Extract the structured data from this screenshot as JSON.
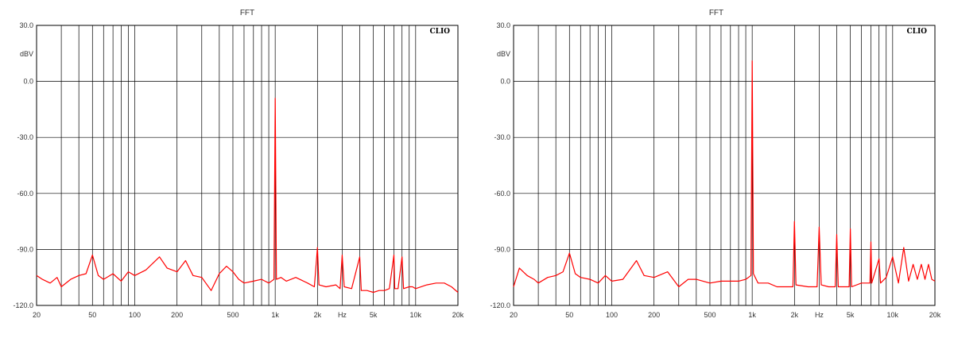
{
  "colors": {
    "trace": "#ff0000",
    "grid": "#000000",
    "background": "#ffffff"
  },
  "chart_data": [
    {
      "type": "line",
      "title": "FFT",
      "brand_label": "CLIO",
      "ylabel": "dBV",
      "x_scale": "log",
      "xlim": [
        20,
        20000
      ],
      "ylim": [
        -120,
        30
      ],
      "grid": true,
      "y_ticks": [
        {
          "value": 30,
          "label": "30.0"
        },
        {
          "value": 0,
          "label": "0.0"
        },
        {
          "value": -30,
          "label": "-30.0"
        },
        {
          "value": -60,
          "label": "-60.0"
        },
        {
          "value": -90,
          "label": "-90.0"
        },
        {
          "value": -120,
          "label": "-120.0"
        }
      ],
      "x_ticks": [
        {
          "value": 20,
          "label": "20"
        },
        {
          "value": 50,
          "label": "50"
        },
        {
          "value": 100,
          "label": "100"
        },
        {
          "value": 200,
          "label": "200"
        },
        {
          "value": 500,
          "label": "500"
        },
        {
          "value": 1000,
          "label": "1k"
        },
        {
          "value": 2000,
          "label": "2k"
        },
        {
          "value": 3000,
          "label": "Hz"
        },
        {
          "value": 5000,
          "label": "5k"
        },
        {
          "value": 10000,
          "label": "10k"
        },
        {
          "value": 20000,
          "label": "20k"
        }
      ],
      "x_gridlines": [
        20,
        30,
        40,
        50,
        60,
        70,
        80,
        90,
        100,
        200,
        300,
        400,
        500,
        600,
        700,
        800,
        900,
        1000,
        2000,
        3000,
        4000,
        5000,
        6000,
        7000,
        8000,
        9000,
        10000,
        20000
      ],
      "series": [
        {
          "values": [
            [
              20,
              -104
            ],
            [
              22,
              -106
            ],
            [
              25,
              -108
            ],
            [
              28,
              -105
            ],
            [
              30,
              -110
            ],
            [
              35,
              -106
            ],
            [
              40,
              -104
            ],
            [
              45,
              -103
            ],
            [
              50,
              -93
            ],
            [
              55,
              -104
            ],
            [
              60,
              -106
            ],
            [
              70,
              -103
            ],
            [
              80,
              -107
            ],
            [
              90,
              -102
            ],
            [
              100,
              -104
            ],
            [
              120,
              -101
            ],
            [
              150,
              -94
            ],
            [
              170,
              -100
            ],
            [
              200,
              -102
            ],
            [
              230,
              -96
            ],
            [
              260,
              -104
            ],
            [
              300,
              -105
            ],
            [
              350,
              -112
            ],
            [
              400,
              -103
            ],
            [
              450,
              -99
            ],
            [
              500,
              -102
            ],
            [
              550,
              -106
            ],
            [
              600,
              -108
            ],
            [
              700,
              -107
            ],
            [
              800,
              -106
            ],
            [
              900,
              -108
            ],
            [
              980,
              -106
            ],
            [
              1000,
              -9
            ],
            [
              1020,
              -106
            ],
            [
              1100,
              -105
            ],
            [
              1200,
              -107
            ],
            [
              1400,
              -105
            ],
            [
              1700,
              -108
            ],
            [
              1900,
              -110
            ],
            [
              2000,
              -89
            ],
            [
              2050,
              -109
            ],
            [
              2300,
              -110
            ],
            [
              2700,
              -109
            ],
            [
              2900,
              -111
            ],
            [
              3000,
              -93
            ],
            [
              3100,
              -110
            ],
            [
              3500,
              -111
            ],
            [
              4000,
              -94
            ],
            [
              4100,
              -112
            ],
            [
              4500,
              -112
            ],
            [
              5000,
              -113
            ],
            [
              5500,
              -112
            ],
            [
              6000,
              -112
            ],
            [
              6500,
              -111
            ],
            [
              7000,
              -93
            ],
            [
              7100,
              -111
            ],
            [
              7500,
              -111
            ],
            [
              8000,
              -94
            ],
            [
              8200,
              -111
            ],
            [
              9000,
              -110
            ],
            [
              9500,
              -110
            ],
            [
              10000,
              -111
            ],
            [
              12000,
              -109
            ],
            [
              14000,
              -108
            ],
            [
              16000,
              -108
            ],
            [
              18000,
              -110
            ],
            [
              20000,
              -113
            ]
          ]
        }
      ]
    },
    {
      "type": "line",
      "title": "FFT",
      "brand_label": "CLIO",
      "ylabel": "dBV",
      "x_scale": "log",
      "xlim": [
        20,
        20000
      ],
      "ylim": [
        -120,
        30
      ],
      "grid": true,
      "y_ticks": [
        {
          "value": 30,
          "label": "30.0"
        },
        {
          "value": 0,
          "label": "0.0"
        },
        {
          "value": -30,
          "label": "-30.0"
        },
        {
          "value": -60,
          "label": "-60.0"
        },
        {
          "value": -90,
          "label": "-90.0"
        },
        {
          "value": -120,
          "label": "-120.0"
        }
      ],
      "x_ticks": [
        {
          "value": 20,
          "label": "20"
        },
        {
          "value": 50,
          "label": "50"
        },
        {
          "value": 100,
          "label": "100"
        },
        {
          "value": 200,
          "label": "200"
        },
        {
          "value": 500,
          "label": "500"
        },
        {
          "value": 1000,
          "label": "1k"
        },
        {
          "value": 2000,
          "label": "2k"
        },
        {
          "value": 3000,
          "label": "Hz"
        },
        {
          "value": 5000,
          "label": "5k"
        },
        {
          "value": 10000,
          "label": "10k"
        },
        {
          "value": 20000,
          "label": "20k"
        }
      ],
      "x_gridlines": [
        20,
        30,
        40,
        50,
        60,
        70,
        80,
        90,
        100,
        200,
        300,
        400,
        500,
        600,
        700,
        800,
        900,
        1000,
        2000,
        3000,
        4000,
        5000,
        6000,
        7000,
        8000,
        9000,
        10000,
        20000
      ],
      "series": [
        {
          "values": [
            [
              20,
              -110
            ],
            [
              22,
              -100
            ],
            [
              25,
              -104
            ],
            [
              28,
              -106
            ],
            [
              30,
              -108
            ],
            [
              35,
              -105
            ],
            [
              40,
              -104
            ],
            [
              45,
              -102
            ],
            [
              50,
              -92
            ],
            [
              55,
              -103
            ],
            [
              60,
              -105
            ],
            [
              70,
              -106
            ],
            [
              80,
              -108
            ],
            [
              90,
              -104
            ],
            [
              100,
              -107
            ],
            [
              120,
              -106
            ],
            [
              150,
              -96
            ],
            [
              170,
              -104
            ],
            [
              200,
              -105
            ],
            [
              250,
              -102
            ],
            [
              300,
              -110
            ],
            [
              350,
              -106
            ],
            [
              400,
              -106
            ],
            [
              500,
              -108
            ],
            [
              600,
              -107
            ],
            [
              700,
              -107
            ],
            [
              800,
              -107
            ],
            [
              900,
              -106
            ],
            [
              980,
              -104
            ],
            [
              1000,
              11
            ],
            [
              1020,
              -103
            ],
            [
              1100,
              -108
            ],
            [
              1300,
              -108
            ],
            [
              1500,
              -110
            ],
            [
              1800,
              -110
            ],
            [
              1950,
              -110
            ],
            [
              2000,
              -75
            ],
            [
              2050,
              -109
            ],
            [
              2500,
              -110
            ],
            [
              2900,
              -110
            ],
            [
              3000,
              -78
            ],
            [
              3100,
              -109
            ],
            [
              3500,
              -110
            ],
            [
              3900,
              -110
            ],
            [
              4000,
              -82
            ],
            [
              4100,
              -110
            ],
            [
              4500,
              -110
            ],
            [
              4900,
              -110
            ],
            [
              5000,
              -79
            ],
            [
              5100,
              -110
            ],
            [
              6000,
              -108
            ],
            [
              6900,
              -108
            ],
            [
              7000,
              -86
            ],
            [
              7100,
              -108
            ],
            [
              8000,
              -95
            ],
            [
              8200,
              -108
            ],
            [
              9000,
              -105
            ],
            [
              10000,
              -94
            ],
            [
              11000,
              -108
            ],
            [
              12000,
              -89
            ],
            [
              13000,
              -107
            ],
            [
              14000,
              -98
            ],
            [
              15000,
              -106
            ],
            [
              16000,
              -98
            ],
            [
              17000,
              -106
            ],
            [
              18000,
              -98
            ],
            [
              19000,
              -106
            ],
            [
              20000,
              -107
            ]
          ]
        }
      ]
    }
  ]
}
